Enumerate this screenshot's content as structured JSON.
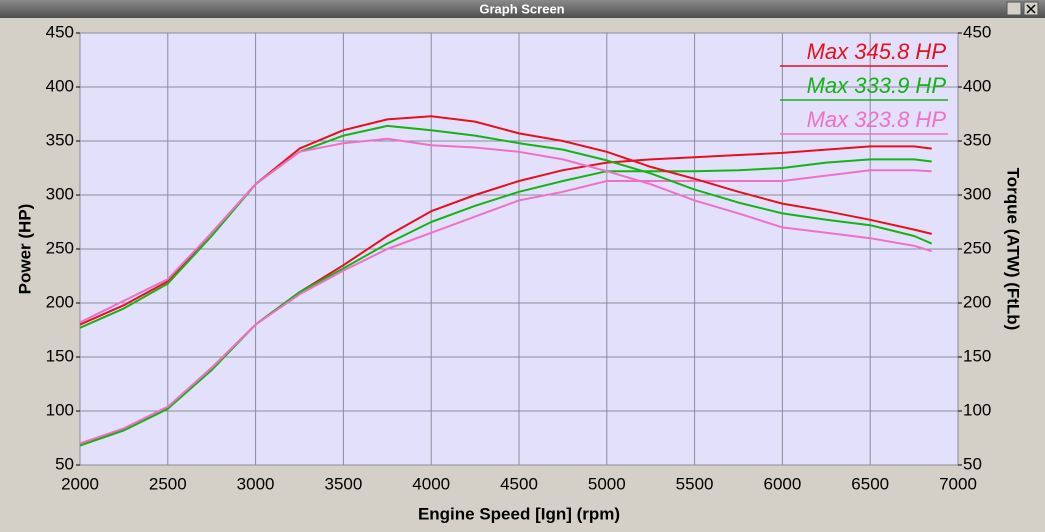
{
  "window_title": "Graph Screen",
  "chart_data": {
    "type": "line",
    "x_label": "Engine Speed [Ign] (rpm)",
    "y_label": "Power (HP)",
    "y2_label": "Torque (ATW) (FtLb)",
    "x": [
      2000,
      2250,
      2500,
      2750,
      3000,
      3250,
      3500,
      3750,
      4000,
      4250,
      4500,
      4750,
      5000,
      5250,
      5500,
      5750,
      6000,
      6250,
      6500,
      6750,
      6850
    ],
    "xlim": [
      2000,
      7000
    ],
    "xticks": [
      2000,
      2500,
      3000,
      3500,
      4000,
      4500,
      5000,
      5500,
      6000,
      6500,
      7000
    ],
    "ylim": [
      50,
      450
    ],
    "yticks": [
      50,
      100,
      150,
      200,
      250,
      300,
      350,
      400,
      450
    ],
    "y2lim": [
      50,
      450
    ],
    "y2ticks": [
      50,
      100,
      150,
      200,
      250,
      300,
      350,
      400,
      450
    ],
    "grid": true,
    "legend": "top-right",
    "series": [
      {
        "name": "Max 345.8 HP",
        "color": "#e8101c",
        "values": [
          70,
          83,
          103,
          140,
          180,
          210,
          235,
          262,
          285,
          300,
          313,
          323,
          330,
          333,
          335,
          337,
          339,
          342,
          345,
          345,
          343
        ]
      },
      {
        "name": "Max 333.9 HP",
        "color": "#14b414",
        "values": [
          68,
          82,
          102,
          138,
          180,
          210,
          232,
          255,
          275,
          290,
          303,
          313,
          322,
          322,
          322,
          323,
          325,
          330,
          333,
          333,
          331
        ]
      },
      {
        "name": "Max 323.8 HP",
        "color": "#f070c8",
        "values": [
          70,
          84,
          104,
          140,
          180,
          208,
          230,
          250,
          265,
          280,
          295,
          303,
          313,
          313,
          313,
          313,
          313,
          318,
          323,
          323,
          322
        ]
      },
      {
        "color": "#e8101c",
        "axis": "y2",
        "values": [
          180,
          198,
          220,
          265,
          310,
          343,
          360,
          370,
          373,
          368,
          357,
          350,
          340,
          326,
          315,
          303,
          292,
          285,
          277,
          268,
          264
        ]
      },
      {
        "color": "#14b414",
        "axis": "y2",
        "values": [
          177,
          195,
          218,
          262,
          310,
          340,
          355,
          364,
          360,
          355,
          348,
          342,
          332,
          320,
          305,
          293,
          283,
          277,
          272,
          262,
          255
        ]
      },
      {
        "color": "#f070c8",
        "axis": "y2",
        "values": [
          182,
          202,
          222,
          265,
          310,
          340,
          348,
          352,
          346,
          344,
          340,
          333,
          322,
          310,
          295,
          283,
          270,
          265,
          260,
          253,
          248
        ]
      }
    ]
  }
}
